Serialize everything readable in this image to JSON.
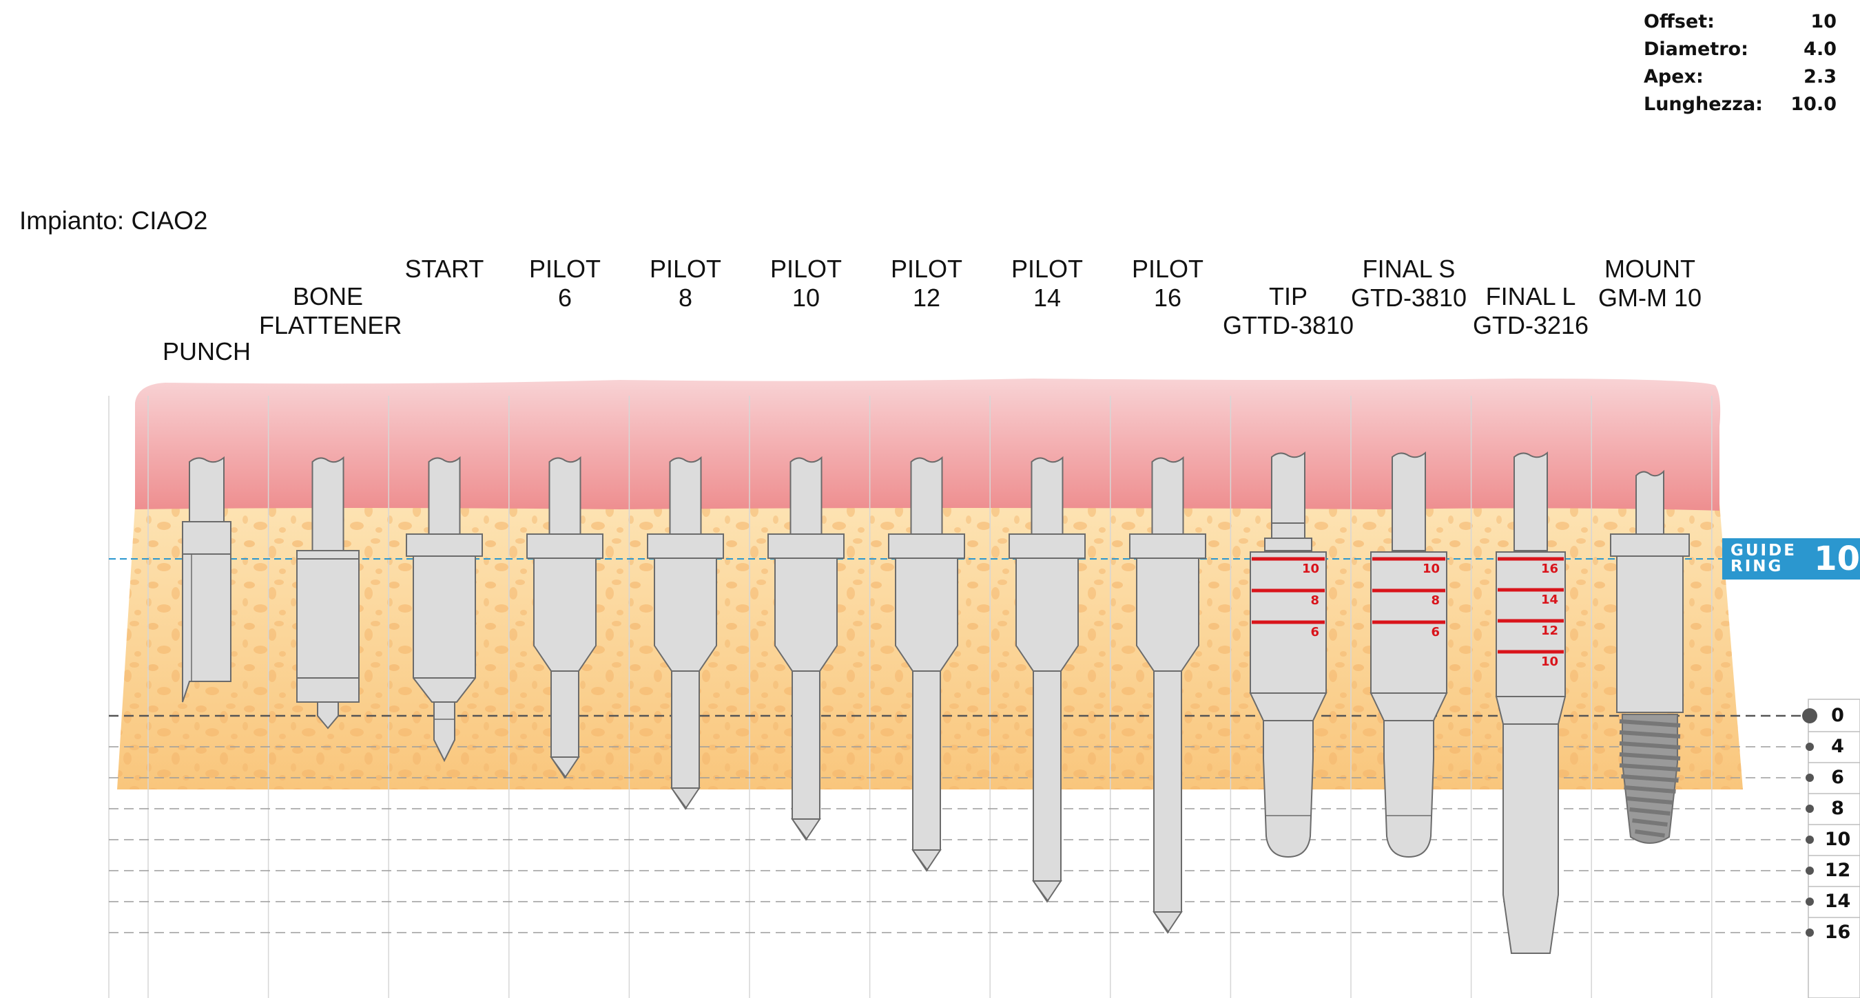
{
  "specs": {
    "offset_label": "Offset:",
    "offset_value": "10",
    "diametro_label": "Diametro:",
    "diametro_value": "4.0",
    "apex_label": "Apex:",
    "apex_value": "2.3",
    "lunghezza_label": "Lunghezza:",
    "lunghezza_value": "10.0"
  },
  "impianto": "Impianto: CIAO2",
  "tools": [
    {
      "name": "punch",
      "line1": "",
      "line2": "PUNCH",
      "depth": 0
    },
    {
      "name": "bone-flattener",
      "line1": "BONE",
      "line2": "FLATTENER",
      "depth": 0
    },
    {
      "name": "start",
      "line1": "START",
      "line2": "",
      "depth": 0
    },
    {
      "name": "pilot-6",
      "line1": "PILOT",
      "line2": "6",
      "depth": 6
    },
    {
      "name": "pilot-8",
      "line1": "PILOT",
      "line2": "8",
      "depth": 8
    },
    {
      "name": "pilot-10",
      "line1": "PILOT",
      "line2": "10",
      "depth": 10
    },
    {
      "name": "pilot-12",
      "line1": "PILOT",
      "line2": "12",
      "depth": 12
    },
    {
      "name": "pilot-14",
      "line1": "PILOT",
      "line2": "14",
      "depth": 14
    },
    {
      "name": "pilot-16",
      "line1": "PILOT",
      "line2": "16",
      "depth": 16
    },
    {
      "name": "tip",
      "line1": "TIP",
      "line2": "GTTD-3810",
      "depth": 10,
      "marks": [
        "10",
        "8",
        "6"
      ]
    },
    {
      "name": "final-s",
      "line1": "FINAL  S",
      "line2": "GTD-3810",
      "depth": 10,
      "marks": [
        "10",
        "8",
        "6"
      ]
    },
    {
      "name": "final-l",
      "line1": "FINAL  L",
      "line2": "GTD-3216",
      "depth": 16,
      "marks": [
        "16",
        "14",
        "12",
        "10"
      ]
    },
    {
      "name": "mount",
      "line1": "MOUNT",
      "line2": "GM-M 10",
      "depth": 10
    }
  ],
  "guide_ring": {
    "text_line1": "GUIDE",
    "text_line2": "RING",
    "value": "10"
  },
  "depth_scale": [
    "0",
    "4",
    "6",
    "8",
    "10",
    "12",
    "14",
    "16"
  ],
  "colors": {
    "gum_light": "#f7c9cc",
    "gum_dark": "#ef9697",
    "bone": "#fbcf8a",
    "instrument": "#dcdcdc",
    "implant": "#9a9a9a",
    "marker_red": "#d9141b",
    "guide_blue": "#2b97cf"
  }
}
